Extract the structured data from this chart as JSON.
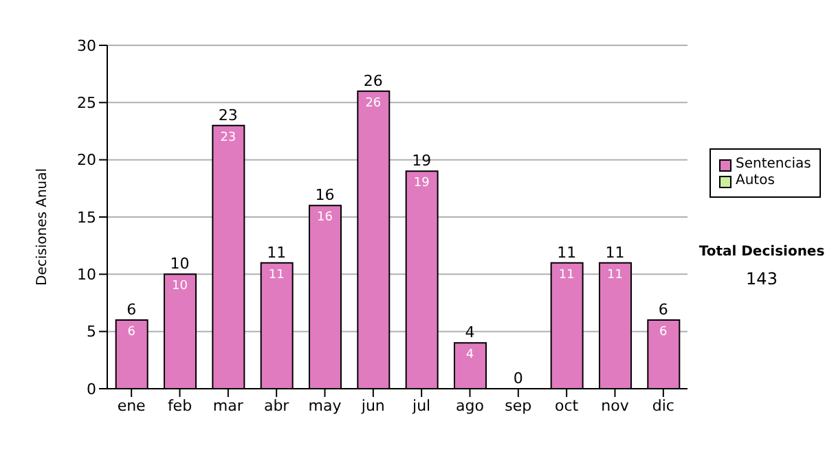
{
  "chart_data": {
    "type": "bar",
    "stacked": true,
    "ylabel": "Decisiones Anual",
    "categories": [
      "ene",
      "feb",
      "mar",
      "abr",
      "may",
      "jun",
      "jul",
      "ago",
      "sep",
      "oct",
      "nov",
      "dic"
    ],
    "series": [
      {
        "name": "Sentencias",
        "color": "#e07bbf",
        "values": [
          6,
          10,
          23,
          11,
          16,
          26,
          19,
          4,
          0,
          11,
          11,
          6
        ],
        "value_labels": [
          "6",
          "10",
          "23",
          "11",
          "16",
          "26",
          "19",
          "4",
          null,
          "11",
          "11",
          "6"
        ]
      },
      {
        "name": "Autos",
        "color": "#cceea0",
        "values": [
          0,
          0,
          0,
          0,
          0,
          0,
          0,
          0,
          0,
          0,
          0,
          0
        ]
      }
    ],
    "totals": [
      "6",
      "10",
      "23",
      "11",
      "16",
      "26",
      "19",
      "4",
      "0",
      "11",
      "11",
      "6"
    ],
    "ylim": [
      0,
      30
    ],
    "yticks": [
      0,
      5,
      10,
      15,
      20,
      25,
      30
    ],
    "grid": "y",
    "legend": "right",
    "annotations": [
      "Total Decisiones",
      "143"
    ]
  }
}
